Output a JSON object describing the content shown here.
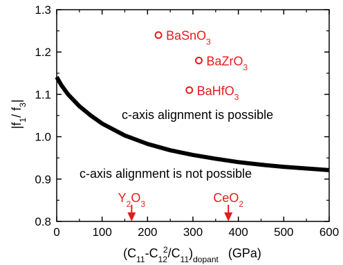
{
  "chart_data": {
    "type": "line",
    "title": "",
    "xlabel_parts": {
      "open": "(C",
      "s1": "11",
      "minus": "-C",
      "s2": "12",
      "sup": "2",
      "slash": "/C",
      "s3": "11",
      "close": ")",
      "sub_dopant": "dopant",
      "unit": "(GPa)"
    },
    "ylabel_parts": {
      "open": "|f",
      "s1": "1",
      "mid": "/ f",
      "s2": "3",
      "close": "|"
    },
    "xlim": [
      0,
      600
    ],
    "ylim": [
      0.8,
      1.3
    ],
    "xticks": [
      0,
      100,
      200,
      300,
      400,
      500,
      600
    ],
    "yticks": [
      0.8,
      0.9,
      1.0,
      1.1,
      1.2,
      1.3
    ],
    "xtick_labels": [
      "0",
      "100",
      "200",
      "300",
      "400",
      "500",
      "600"
    ],
    "ytick_labels": [
      "0.8",
      "0.9",
      "1.0",
      "1.1",
      "1.2",
      "1.3"
    ],
    "grid": false,
    "series": [
      {
        "color": "#000000",
        "x": [
          0,
          10,
          25,
          50,
          75,
          100,
          150,
          200,
          250,
          300,
          350,
          400,
          450,
          500,
          550,
          600
        ],
        "values": [
          1.141,
          1.122,
          1.1,
          1.072,
          1.05,
          1.031,
          1.003,
          0.983,
          0.968,
          0.957,
          0.948,
          0.94,
          0.934,
          0.929,
          0.925,
          0.921
        ]
      }
    ],
    "points": [
      {
        "x": 224,
        "y": 1.24,
        "label_parts": [
          "BaSnO",
          "3"
        ]
      },
      {
        "x": 313,
        "y": 1.18,
        "label_parts": [
          "BaZrO",
          "3"
        ]
      },
      {
        "x": 292,
        "y": 1.11,
        "label_parts": [
          "BaHfO",
          "3"
        ]
      }
    ],
    "point_color": "#e8191c",
    "markers": [
      {
        "x": 165,
        "label_parts": [
          "Y",
          "2",
          "O",
          "3"
        ]
      },
      {
        "x": 378,
        "label_parts": [
          "CeO",
          "2"
        ]
      }
    ],
    "marker_color": "#e8191c",
    "region_labels": {
      "above": {
        "x": 310,
        "y": 1.042,
        "text": "c-axis alignment is possible"
      },
      "below": {
        "x": 240,
        "y": 0.903,
        "text": "c-axis alignment is not possible"
      }
    }
  }
}
